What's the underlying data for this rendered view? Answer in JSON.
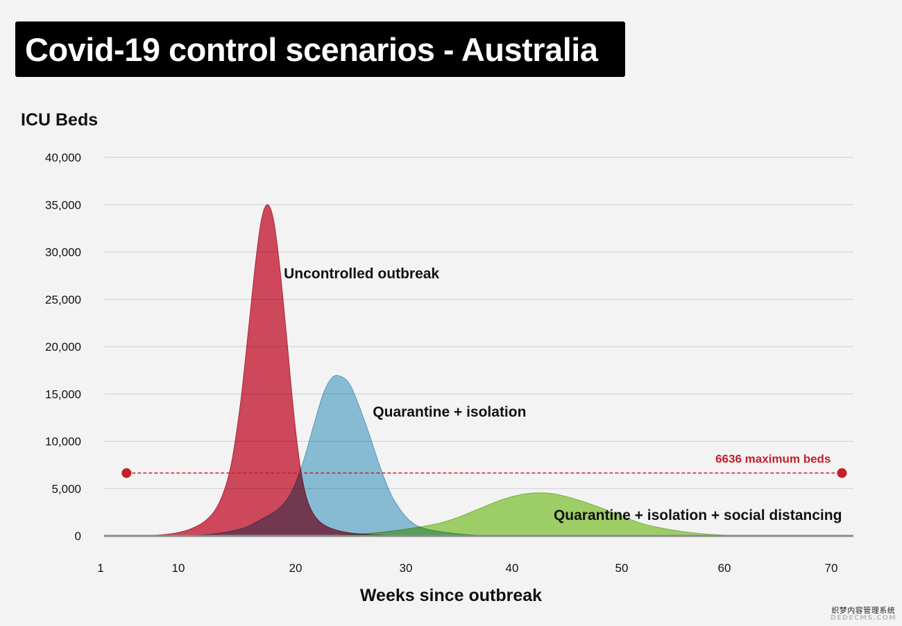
{
  "title": "Covid-19 control scenarios - Australia",
  "watermark": {
    "line1": "织梦内容管理系统",
    "line2": "DEDECMS.COM"
  },
  "chart_data": {
    "type": "area",
    "title": "Covid-19 control scenarios - Australia",
    "ylabel": "ICU Beds",
    "xlabel": "Weeks since outbreak",
    "ylim": [
      0,
      40000
    ],
    "y_ticks": [
      {
        "value": 0,
        "label": "0"
      },
      {
        "value": 5000,
        "label": "5,000"
      },
      {
        "value": 10000,
        "label": "10,000"
      },
      {
        "value": 15000,
        "label": "15,000"
      },
      {
        "value": 20000,
        "label": "20,000"
      },
      {
        "value": 25000,
        "label": "25,000"
      },
      {
        "value": 30000,
        "label": "30,000"
      },
      {
        "value": 35000,
        "label": "35,000"
      },
      {
        "value": 40000,
        "label": "40,000"
      }
    ],
    "x_ticks": [
      {
        "value": 1,
        "label": "1"
      },
      {
        "value": 10,
        "label": "10"
      },
      {
        "value": 20,
        "label": "20"
      },
      {
        "value": 30,
        "label": "30"
      },
      {
        "value": 40,
        "label": "40"
      },
      {
        "value": 50,
        "label": "50"
      },
      {
        "value": 60,
        "label": "60"
      },
      {
        "value": 70,
        "label": "70"
      }
    ],
    "grid": true,
    "series": [
      {
        "name": "Uncontrolled outbreak",
        "color": "#d64b5e",
        "stroke": "#b8273a",
        "label_anchor_x": 19,
        "label_anchor_y": 27200,
        "points": [
          [
            6,
            0
          ],
          [
            9,
            200
          ],
          [
            11,
            700
          ],
          [
            12.5,
            1800
          ],
          [
            13.6,
            3800
          ],
          [
            14.5,
            7500
          ],
          [
            15.3,
            14000
          ],
          [
            16,
            22000
          ],
          [
            16.6,
            29000
          ],
          [
            17.1,
            33500
          ],
          [
            17.6,
            35000
          ],
          [
            18.1,
            33500
          ],
          [
            18.6,
            29000
          ],
          [
            19.2,
            21500
          ],
          [
            19.8,
            13500
          ],
          [
            20.4,
            7500
          ],
          [
            21,
            4000
          ],
          [
            21.8,
            2000
          ],
          [
            23,
            900
          ],
          [
            25,
            300
          ],
          [
            28,
            80
          ],
          [
            32,
            0
          ]
        ]
      },
      {
        "name": "Quarantine + isolation",
        "color": "#8ec4de",
        "stroke": "#5ba0c6",
        "label_anchor_x": 27,
        "label_anchor_y": 12600,
        "points": [
          [
            10,
            0
          ],
          [
            13,
            200
          ],
          [
            15.5,
            800
          ],
          [
            17,
            1700
          ],
          [
            18.5,
            2800
          ],
          [
            19.6,
            4500
          ],
          [
            20.6,
            7500
          ],
          [
            21.6,
            11500
          ],
          [
            22.5,
            15000
          ],
          [
            23.3,
            16700
          ],
          [
            24,
            16900
          ],
          [
            24.8,
            16200
          ],
          [
            25.6,
            14200
          ],
          [
            26.6,
            11000
          ],
          [
            27.6,
            7500
          ],
          [
            28.6,
            4500
          ],
          [
            29.6,
            2600
          ],
          [
            30.6,
            1400
          ],
          [
            32,
            700
          ],
          [
            35,
            200
          ],
          [
            38,
            0
          ]
        ]
      },
      {
        "name": "Quarantine + isolation + social distancing",
        "color": "#a5d96b",
        "stroke": "#7cb83e",
        "label_anchor_x": 71,
        "label_anchor_y": 1700,
        "label_align": "end",
        "points": [
          [
            21,
            0
          ],
          [
            24,
            100
          ],
          [
            27,
            300
          ],
          [
            30,
            700
          ],
          [
            33,
            1300
          ],
          [
            35,
            2000
          ],
          [
            37,
            2900
          ],
          [
            39,
            3800
          ],
          [
            41,
            4400
          ],
          [
            42.5,
            4550
          ],
          [
            44,
            4400
          ],
          [
            46,
            3800
          ],
          [
            48,
            3000
          ],
          [
            50,
            2100
          ],
          [
            52,
            1300
          ],
          [
            54,
            800
          ],
          [
            56,
            450
          ],
          [
            58,
            200
          ],
          [
            60,
            80
          ],
          [
            62,
            0
          ]
        ]
      }
    ],
    "reference_line": {
      "value": 6636,
      "x_start": 4,
      "x_end": 71,
      "label": "6636 maximum beds",
      "color": "#c41e2a"
    }
  }
}
